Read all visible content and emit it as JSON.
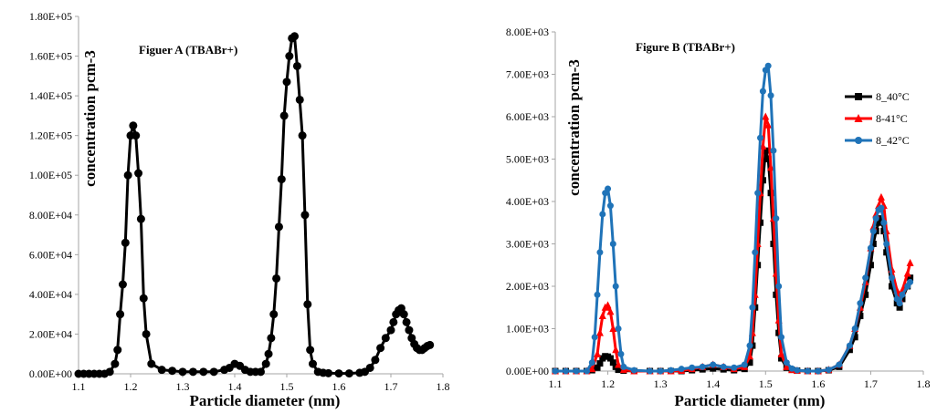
{
  "chart_data": [
    {
      "type": "line",
      "title": "Figuer A (TBABr+)",
      "xlabel": "Particle diameter (nm)",
      "ylabel": "concentration pcm-3",
      "xlim": [
        1.1,
        1.8
      ],
      "ylim": [
        0,
        180000
      ],
      "xticks": [
        "1.1",
        "1.2",
        "1.3",
        "1.4",
        "1.5",
        "1.6",
        "1.7",
        "1.8"
      ],
      "yticks": [
        "0.00E+00",
        "2.00E+04",
        "4.00E+04",
        "6.00E+04",
        "8.00E+04",
        "1.00E+05",
        "1.20E+05",
        "1.40E+05",
        "1.60E+05",
        "1.80E+05"
      ],
      "legend": "none",
      "grid": false,
      "series": [
        {
          "color": "#000000",
          "marker": "circle",
          "x": [
            1.1,
            1.11,
            1.12,
            1.13,
            1.14,
            1.15,
            1.16,
            1.17,
            1.175,
            1.18,
            1.185,
            1.19,
            1.195,
            1.2,
            1.205,
            1.21,
            1.215,
            1.22,
            1.225,
            1.23,
            1.24,
            1.26,
            1.28,
            1.3,
            1.32,
            1.34,
            1.36,
            1.38,
            1.39,
            1.4,
            1.41,
            1.42,
            1.43,
            1.44,
            1.45,
            1.46,
            1.465,
            1.47,
            1.475,
            1.48,
            1.485,
            1.49,
            1.495,
            1.5,
            1.505,
            1.51,
            1.515,
            1.52,
            1.525,
            1.53,
            1.535,
            1.54,
            1.545,
            1.55,
            1.56,
            1.57,
            1.58,
            1.6,
            1.62,
            1.64,
            1.65,
            1.66,
            1.67,
            1.68,
            1.69,
            1.7,
            1.705,
            1.71,
            1.715,
            1.72,
            1.725,
            1.73,
            1.735,
            1.74,
            1.745,
            1.75,
            1.755,
            1.76,
            1.765,
            1.77,
            1.775
          ],
          "y": [
            0,
            0,
            0,
            0,
            0,
            0,
            1000,
            5000,
            12000,
            30000,
            45000,
            66000,
            100000,
            120000,
            125000,
            120000,
            101000,
            78000,
            38000,
            20000,
            5000,
            2000,
            1500,
            1000,
            1000,
            1000,
            1000,
            2000,
            3000,
            5000,
            4000,
            2000,
            1000,
            1000,
            1000,
            5000,
            10000,
            18000,
            30000,
            48000,
            74000,
            98000,
            130000,
            147000,
            160000,
            169000,
            170000,
            155000,
            138000,
            120000,
            80000,
            35000,
            12000,
            5000,
            1000,
            500,
            300,
            200,
            200,
            500,
            1000,
            3000,
            7000,
            13000,
            18000,
            22000,
            26000,
            30000,
            32000,
            33000,
            30000,
            26000,
            22000,
            18000,
            15000,
            13000,
            12000,
            12000,
            13000,
            14000,
            14500
          ]
        }
      ]
    },
    {
      "type": "line",
      "title": "Figure B (TBABr+)",
      "xlabel": "Particle diameter (nm)",
      "ylabel": "concentration pcm-3",
      "xlim": [
        1.1,
        1.8
      ],
      "ylim": [
        0,
        8000
      ],
      "xticks": [
        "1.1",
        "1.2",
        "1.3",
        "1.4",
        "1.5",
        "1.6",
        "1.7",
        "1.8"
      ],
      "yticks": [
        "0.00E+00",
        "1.00E+03",
        "2.00E+03",
        "3.00E+03",
        "4.00E+03",
        "5.00E+03",
        "6.00E+03",
        "7.00E+03",
        "8.00E+03"
      ],
      "legend": "right",
      "grid": false,
      "series": [
        {
          "name": "8_40°C",
          "color": "#000000",
          "marker": "square",
          "x": [
            1.1,
            1.12,
            1.14,
            1.16,
            1.17,
            1.18,
            1.185,
            1.19,
            1.195,
            1.2,
            1.205,
            1.21,
            1.215,
            1.22,
            1.23,
            1.25,
            1.28,
            1.3,
            1.32,
            1.34,
            1.36,
            1.38,
            1.4,
            1.42,
            1.44,
            1.46,
            1.47,
            1.475,
            1.48,
            1.485,
            1.49,
            1.495,
            1.5,
            1.505,
            1.51,
            1.515,
            1.52,
            1.525,
            1.53,
            1.54,
            1.55,
            1.56,
            1.58,
            1.6,
            1.62,
            1.64,
            1.66,
            1.67,
            1.68,
            1.69,
            1.7,
            1.705,
            1.71,
            1.715,
            1.72,
            1.725,
            1.73,
            1.74,
            1.75,
            1.755,
            1.76,
            1.77,
            1.775
          ],
          "y": [
            0,
            0,
            0,
            0,
            20,
            80,
            180,
            300,
            350,
            340,
            300,
            200,
            100,
            30,
            10,
            0,
            0,
            0,
            0,
            0,
            20,
            40,
            60,
            40,
            20,
            50,
            200,
            600,
            1500,
            2500,
            3500,
            4500,
            5200,
            5000,
            4200,
            3000,
            1800,
            900,
            300,
            80,
            30,
            10,
            0,
            0,
            20,
            100,
            500,
            800,
            1300,
            1800,
            2500,
            3000,
            3300,
            3500,
            3600,
            3300,
            2800,
            2000,
            1600,
            1500,
            1700,
            2000,
            2200
          ]
        },
        {
          "name": "8-41°C",
          "color": "#ff0000",
          "marker": "triangle",
          "x": [
            1.1,
            1.12,
            1.14,
            1.16,
            1.17,
            1.18,
            1.185,
            1.19,
            1.195,
            1.2,
            1.205,
            1.21,
            1.215,
            1.22,
            1.23,
            1.25,
            1.28,
            1.3,
            1.32,
            1.34,
            1.36,
            1.38,
            1.4,
            1.42,
            1.44,
            1.46,
            1.47,
            1.475,
            1.48,
            1.485,
            1.49,
            1.495,
            1.5,
            1.505,
            1.51,
            1.515,
            1.52,
            1.525,
            1.53,
            1.54,
            1.55,
            1.56,
            1.58,
            1.6,
            1.62,
            1.64,
            1.66,
            1.67,
            1.68,
            1.69,
            1.7,
            1.705,
            1.71,
            1.715,
            1.72,
            1.725,
            1.73,
            1.74,
            1.75,
            1.755,
            1.76,
            1.77,
            1.775
          ],
          "y": [
            0,
            0,
            0,
            0,
            50,
            400,
            900,
            1300,
            1500,
            1550,
            1400,
            1000,
            500,
            150,
            30,
            0,
            0,
            0,
            0,
            10,
            50,
            100,
            150,
            100,
            50,
            100,
            350,
            900,
            1800,
            3000,
            4200,
            5300,
            6000,
            5800,
            4800,
            3600,
            2300,
            1200,
            400,
            100,
            30,
            10,
            0,
            0,
            30,
            150,
            600,
            1000,
            1500,
            2100,
            2900,
            3400,
            3700,
            3900,
            4100,
            3900,
            3300,
            2400,
            1900,
            1700,
            1900,
            2300,
            2550
          ]
        },
        {
          "name": "8_42°C",
          "color": "#1f73b8",
          "marker": "circle",
          "x": [
            1.1,
            1.12,
            1.14,
            1.16,
            1.17,
            1.175,
            1.18,
            1.185,
            1.19,
            1.195,
            1.2,
            1.205,
            1.21,
            1.215,
            1.22,
            1.225,
            1.23,
            1.25,
            1.28,
            1.3,
            1.32,
            1.34,
            1.36,
            1.38,
            1.4,
            1.42,
            1.44,
            1.46,
            1.47,
            1.475,
            1.48,
            1.485,
            1.49,
            1.495,
            1.5,
            1.505,
            1.51,
            1.515,
            1.52,
            1.525,
            1.53,
            1.54,
            1.55,
            1.56,
            1.58,
            1.6,
            1.62,
            1.64,
            1.66,
            1.67,
            1.68,
            1.69,
            1.7,
            1.705,
            1.71,
            1.715,
            1.72,
            1.725,
            1.73,
            1.74,
            1.75,
            1.755,
            1.76,
            1.77,
            1.775
          ],
          "y": [
            0,
            0,
            0,
            0,
            200,
            800,
            1800,
            2800,
            3700,
            4200,
            4300,
            3900,
            3000,
            2000,
            1000,
            400,
            100,
            20,
            0,
            0,
            20,
            50,
            80,
            100,
            150,
            100,
            80,
            150,
            600,
            1500,
            2800,
            4200,
            5500,
            6600,
            7100,
            7200,
            6500,
            5200,
            3600,
            2000,
            800,
            200,
            60,
            20,
            0,
            0,
            30,
            150,
            600,
            1000,
            1600,
            2200,
            2900,
            3300,
            3600,
            3800,
            3850,
            3500,
            3000,
            2200,
            1700,
            1600,
            1800,
            2000,
            2100
          ]
        }
      ]
    }
  ]
}
